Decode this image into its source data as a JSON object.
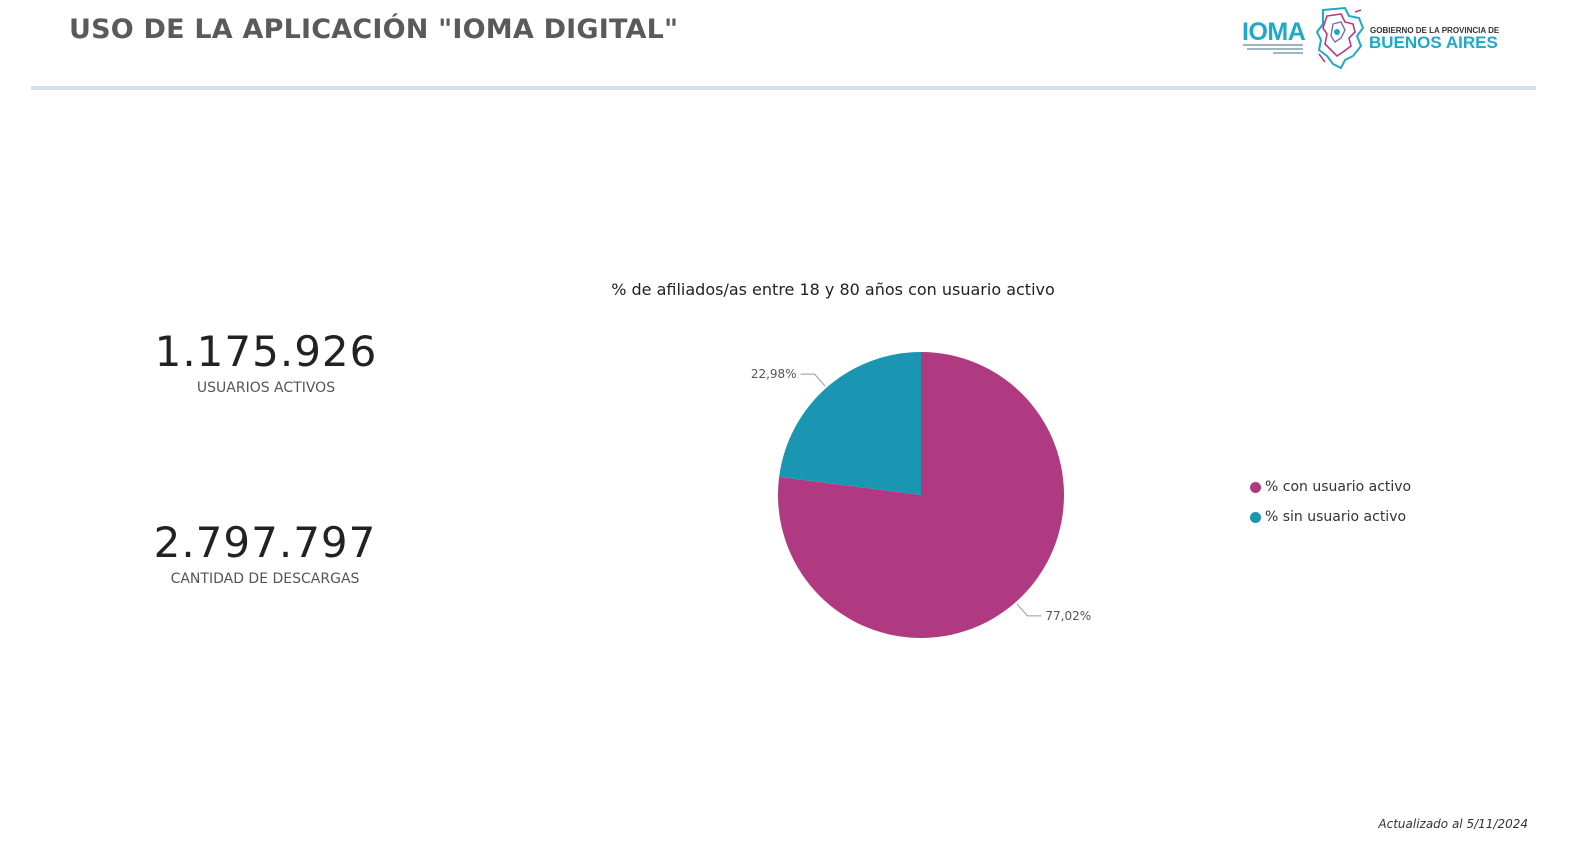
{
  "header": {
    "title": "USO DE LA APLICACIÓN \"IOMA DIGITAL\""
  },
  "logo": {
    "ioma": "IOMA",
    "gobierno": "GOBIERNO DE LA PROVINCIA DE",
    "provincia": "BUENOS AIRES",
    "brand_color": "#1fa9c4"
  },
  "kpis": [
    {
      "value": "1.175.926",
      "label": "USUARIOS ACTIVOS"
    },
    {
      "value": "2.797.797",
      "label": "CANTIDAD DE DESCARGAS"
    }
  ],
  "chart_data": {
    "type": "pie",
    "title": "% de afiliados/as entre 18 y 80 años con usuario activo",
    "categories": [
      "% con usuario activo",
      "% sin usuario activo"
    ],
    "values": [
      77.02,
      22.98
    ],
    "data_labels": [
      "77,02%",
      "22,98%"
    ],
    "colors": [
      "#b03a82",
      "#1a96b2"
    ],
    "legend_position": "right"
  },
  "footer": {
    "updated": "Actualizado al 5/11/2024"
  }
}
